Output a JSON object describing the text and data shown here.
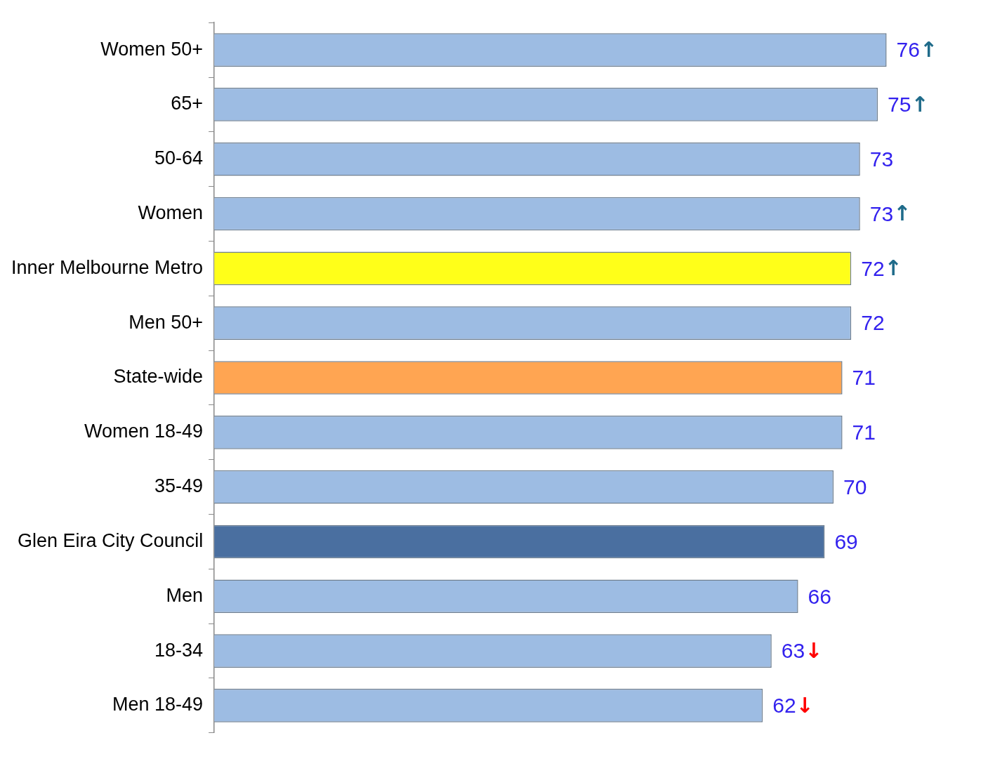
{
  "chart_data": {
    "type": "bar",
    "orientation": "horizontal",
    "categories": [
      "Women 50+",
      "65+",
      "50-64",
      "Women",
      "Inner Melbourne Metro",
      "Men 50+",
      "State-wide",
      "Women 18-49",
      "35-49",
      "Glen Eira City Council",
      "Men",
      "18-34",
      "Men 18-49"
    ],
    "values": [
      76,
      75,
      73,
      73,
      72,
      72,
      71,
      71,
      70,
      69,
      66,
      63,
      62
    ],
    "colors": [
      "#9dbce3",
      "#9dbce3",
      "#9dbce3",
      "#9dbce3",
      "#ffff19",
      "#9dbce3",
      "#ffa552",
      "#9dbce3",
      "#9dbce3",
      "#4a6fa0",
      "#9dbce3",
      "#9dbce3",
      "#9dbce3"
    ],
    "value_labels": [
      "76↑",
      "75↑",
      "73",
      "73↑",
      "72↑",
      "72",
      "71",
      "71",
      "70",
      "69",
      "66",
      "63↓",
      "62↓"
    ],
    "legend": false
  }
}
